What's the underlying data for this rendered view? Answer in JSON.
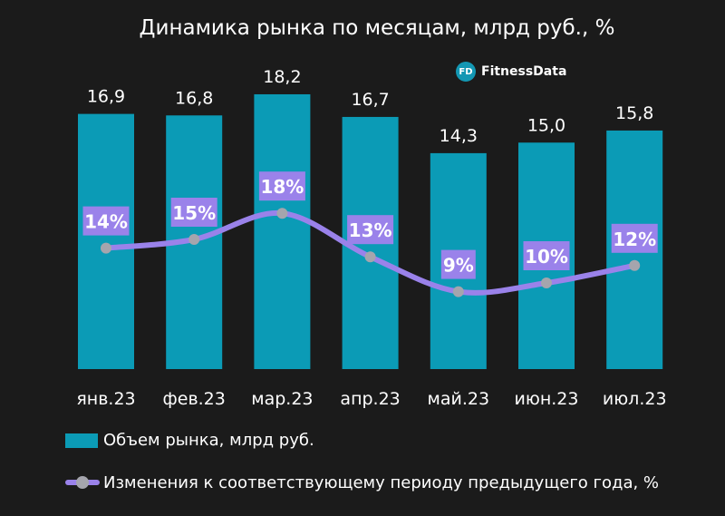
{
  "brand": {
    "badge": "FD",
    "name": "FitnessData"
  },
  "colors": {
    "background": "#1b1b1b",
    "bar": "#0b9bb6",
    "line": "#9a82ea",
    "point": "#a5a5ad",
    "label_box": "#9a82ea"
  },
  "chart_data": {
    "type": "bar+line",
    "title": "Динамика рынка по месяцам, млрд руб., %",
    "categories": [
      "янв.23",
      "фев.23",
      "мар.23",
      "апр.23",
      "май.23",
      "июн.23",
      "июл.23"
    ],
    "series": [
      {
        "name": "Объем рынка, млрд руб.",
        "type": "bar",
        "values": [
          16.9,
          16.8,
          18.2,
          16.7,
          14.3,
          15.0,
          15.8
        ],
        "labels": [
          "16,9",
          "16,8",
          "18,2",
          "16,7",
          "14,3",
          "15,0",
          "15,8"
        ]
      },
      {
        "name": "Изменения к соответствующему периоду предыдущего года, %",
        "type": "line",
        "values": [
          14,
          15,
          18,
          13,
          9,
          10,
          12
        ],
        "labels": [
          "14%",
          "15%",
          "18%",
          "13%",
          "9%",
          "10%",
          "12%"
        ]
      }
    ],
    "grid": false,
    "legend": "bottom"
  }
}
